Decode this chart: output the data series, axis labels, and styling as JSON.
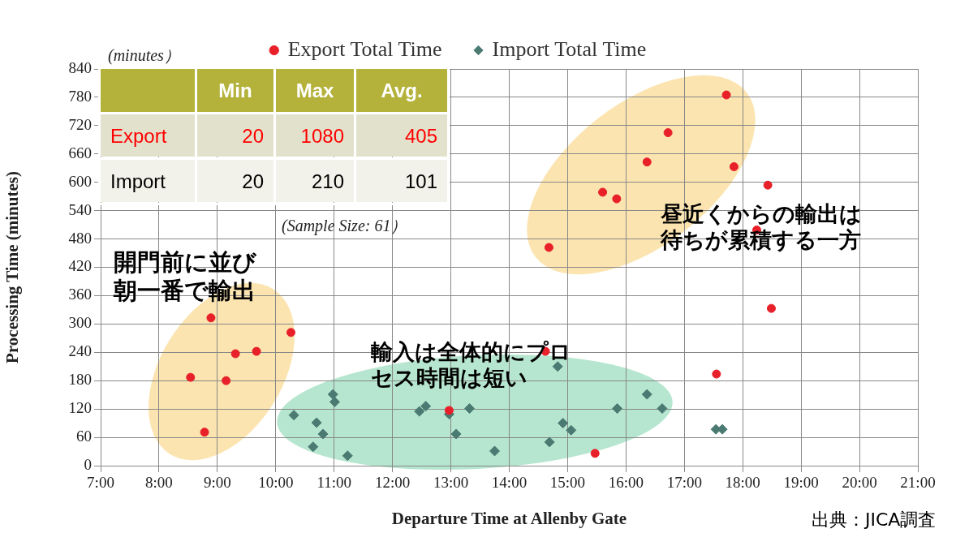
{
  "chart_data": [
    {
      "type": "scatter",
      "xlabel": "Departure Time at Allenby Gate",
      "ylabel": "Processing Time (minutes)",
      "xlim": [
        7,
        21
      ],
      "xticks": [
        {
          "value": 7,
          "label": "7:00"
        },
        {
          "value": 8,
          "label": "8:00"
        },
        {
          "value": 9,
          "label": "9:00"
        },
        {
          "value": 10,
          "label": "10:00"
        },
        {
          "value": 11,
          "label": "11:00"
        },
        {
          "value": 12,
          "label": "12:00"
        },
        {
          "value": 13,
          "label": "13:00"
        },
        {
          "value": 14,
          "label": "14:00"
        },
        {
          "value": 15,
          "label": "15:00"
        },
        {
          "value": 16,
          "label": "16:00"
        },
        {
          "value": 17,
          "label": "17:00"
        },
        {
          "value": 18,
          "label": "18:00"
        },
        {
          "value": 19,
          "label": "19:00"
        },
        {
          "value": 20,
          "label": "20:00"
        },
        {
          "value": 21,
          "label": "21:00"
        }
      ],
      "ylim": [
        0,
        840
      ],
      "yticks": [
        0,
        60,
        120,
        180,
        240,
        300,
        360,
        420,
        480,
        540,
        600,
        660,
        720,
        780,
        840
      ],
      "grid": true,
      "legend": "top",
      "series": [
        {
          "name": "Export Total Time",
          "color": "#e8202a",
          "marker": "circle",
          "x": [
            8.89,
            10.26,
            9.31,
            9.67,
            8.54,
            9.15,
            8.78,
            12.97,
            15.47,
            14.62,
            17.72,
            16.72,
            16.36,
            17.85,
            18.43,
            15.6,
            15.84,
            18.24,
            14.68,
            18.49,
            17.55
          ],
          "values": [
            313,
            282,
            237,
            242,
            187,
            180,
            71,
            117,
            26,
            242,
            785,
            705,
            643,
            633,
            594,
            579,
            565,
            499,
            462,
            333,
            194
          ]
        },
        {
          "name": "Import Total Time",
          "color": "#4a7a72",
          "marker": "diamond",
          "x": [
            10.31,
            10.7,
            10.81,
            10.64,
            11.23,
            10.98,
            11.01,
            12.46,
            12.57,
            12.97,
            13.32,
            13.09,
            13.75,
            14.69,
            14.83,
            14.92,
            15.06,
            15.85,
            16.36,
            16.62,
            17.54,
            17.65
          ],
          "values": [
            107,
            91,
            67,
            40,
            21,
            151,
            135,
            115,
            126,
            109,
            121,
            67,
            31,
            50,
            210,
            90,
            75,
            121,
            151,
            121,
            77,
            77
          ]
        }
      ],
      "annotations": [
        "(minutes）",
        "(Sample Size: 61）",
        "開門前に並び朝一番で輸出",
        "輸入は全体的にプロセス時間は短い",
        "昼近くからの輸出は待ちが累積する一方",
        "出典：JICA調査"
      ]
    },
    {
      "type": "other",
      "categories": [
        "Min",
        "Max",
        "Avg."
      ],
      "data_labels": true,
      "series": [
        {
          "name": "Export",
          "values": [
            20,
            1080,
            405
          ]
        },
        {
          "name": "Import",
          "values": [
            20,
            210,
            101
          ]
        }
      ]
    }
  ]
}
